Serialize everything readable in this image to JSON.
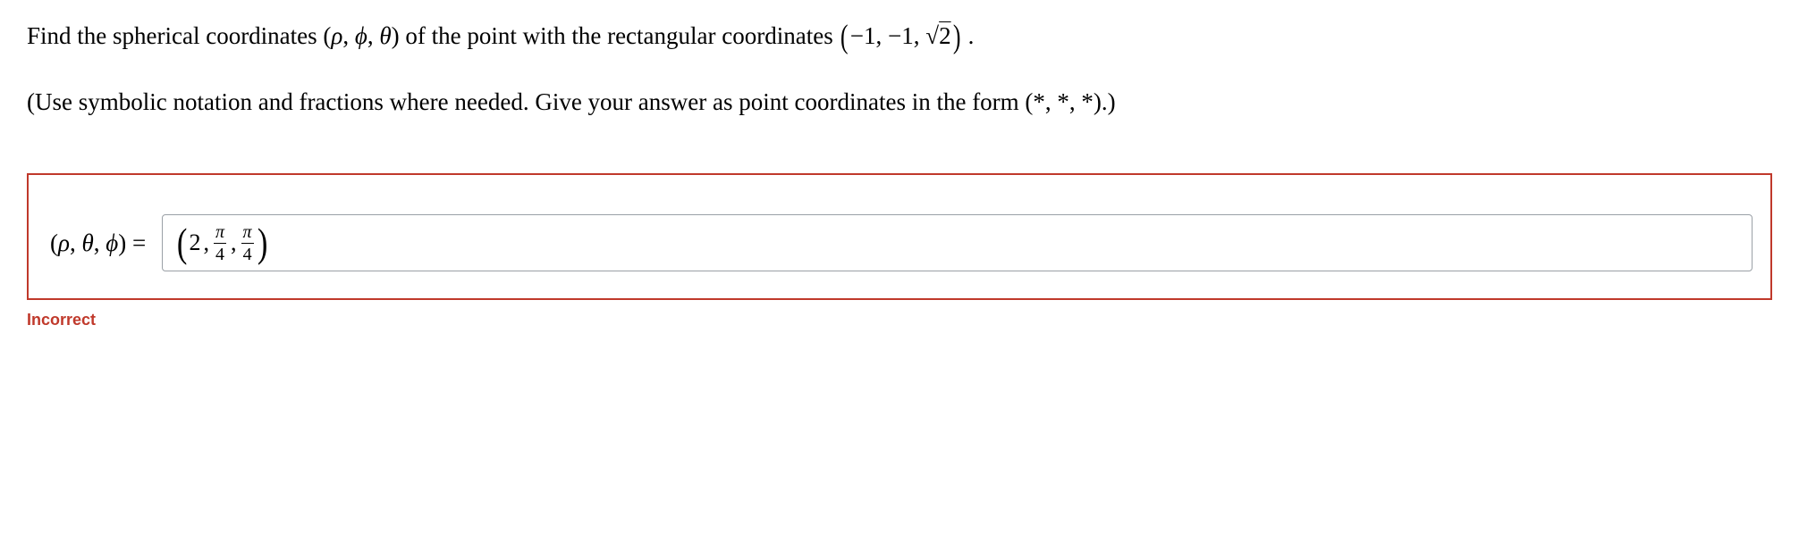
{
  "question": {
    "line1_pre": "Find the spherical coordinates (",
    "sc_rho": "ρ",
    "sc_phi": "ϕ",
    "sc_theta": "θ",
    "line1_mid": ") of the point with the rectangular coordinates ",
    "rect_open": "(",
    "rect_a": "−1",
    "rect_b": "−1",
    "rect_c_sqrt_arg": "2",
    "rect_close": ")",
    "line1_post": " .",
    "line2": "(Use symbolic notation and fractions where needed. Give your answer as point coordinates in the form (*, *, *).)"
  },
  "answer": {
    "label_open": "(",
    "label_rho": "ρ",
    "label_theta": "θ",
    "label_phi": "ϕ",
    "label_close": ") =",
    "value": {
      "first": "2",
      "frac1_num": "π",
      "frac1_den": "4",
      "frac2_num": "π",
      "frac2_den": "4"
    }
  },
  "feedback": {
    "text": "Incorrect",
    "color": "#c0392b"
  },
  "style": {
    "frame_border_color": "#c0392b",
    "input_border_color": "#9aa0a6",
    "input_bg": "#ffffff"
  }
}
